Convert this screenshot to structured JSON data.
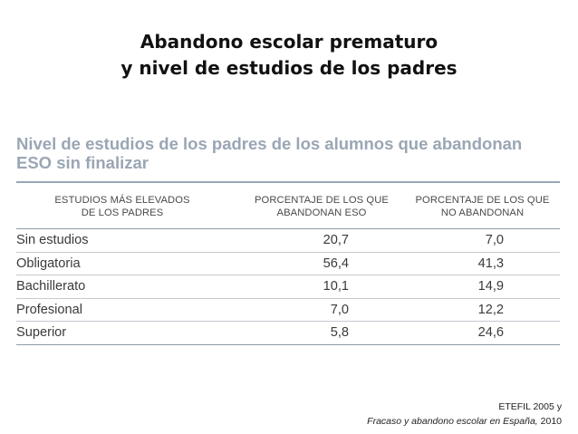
{
  "slide": {
    "title_line1": "Abandono escolar prematuro",
    "title_line2": "y nivel de estudios de los padres"
  },
  "table": {
    "title_line1": "Nivel de estudios de los padres de los alumnos que abandonan",
    "title_line2": "ESO sin finalizar",
    "headers": [
      {
        "line1": "ESTUDIOS MÁS ELEVADOS",
        "line2": "DE LOS PADRES"
      },
      {
        "line1": "PORCENTAJE DE LOS QUE",
        "line2": "ABANDONAN ESO"
      },
      {
        "line1": "PORCENTAJE DE LOS QUE",
        "line2": "NO ABANDONAN"
      }
    ],
    "rows": [
      {
        "label": "Sin estudios",
        "abandonan": "20,7",
        "no_abandonan": "7,0"
      },
      {
        "label": "Obligatoria",
        "abandonan": "56,4",
        "no_abandonan": "41,3"
      },
      {
        "label": "Bachillerato",
        "abandonan": "10,1",
        "no_abandonan": "14,9"
      },
      {
        "label": "Profesional",
        "abandonan": "7,0",
        "no_abandonan": "12,2"
      },
      {
        "label": "Superior",
        "abandonan": "5,8",
        "no_abandonan": "24,6"
      }
    ]
  },
  "source": {
    "line1": "ETEFIL 2005 y",
    "line2_italic": "Fracaso y abandono escolar en España,",
    "line2_year": " 2010"
  },
  "colors": {
    "table_title": "#9aa6b4",
    "rule": "#8f9aa6"
  }
}
